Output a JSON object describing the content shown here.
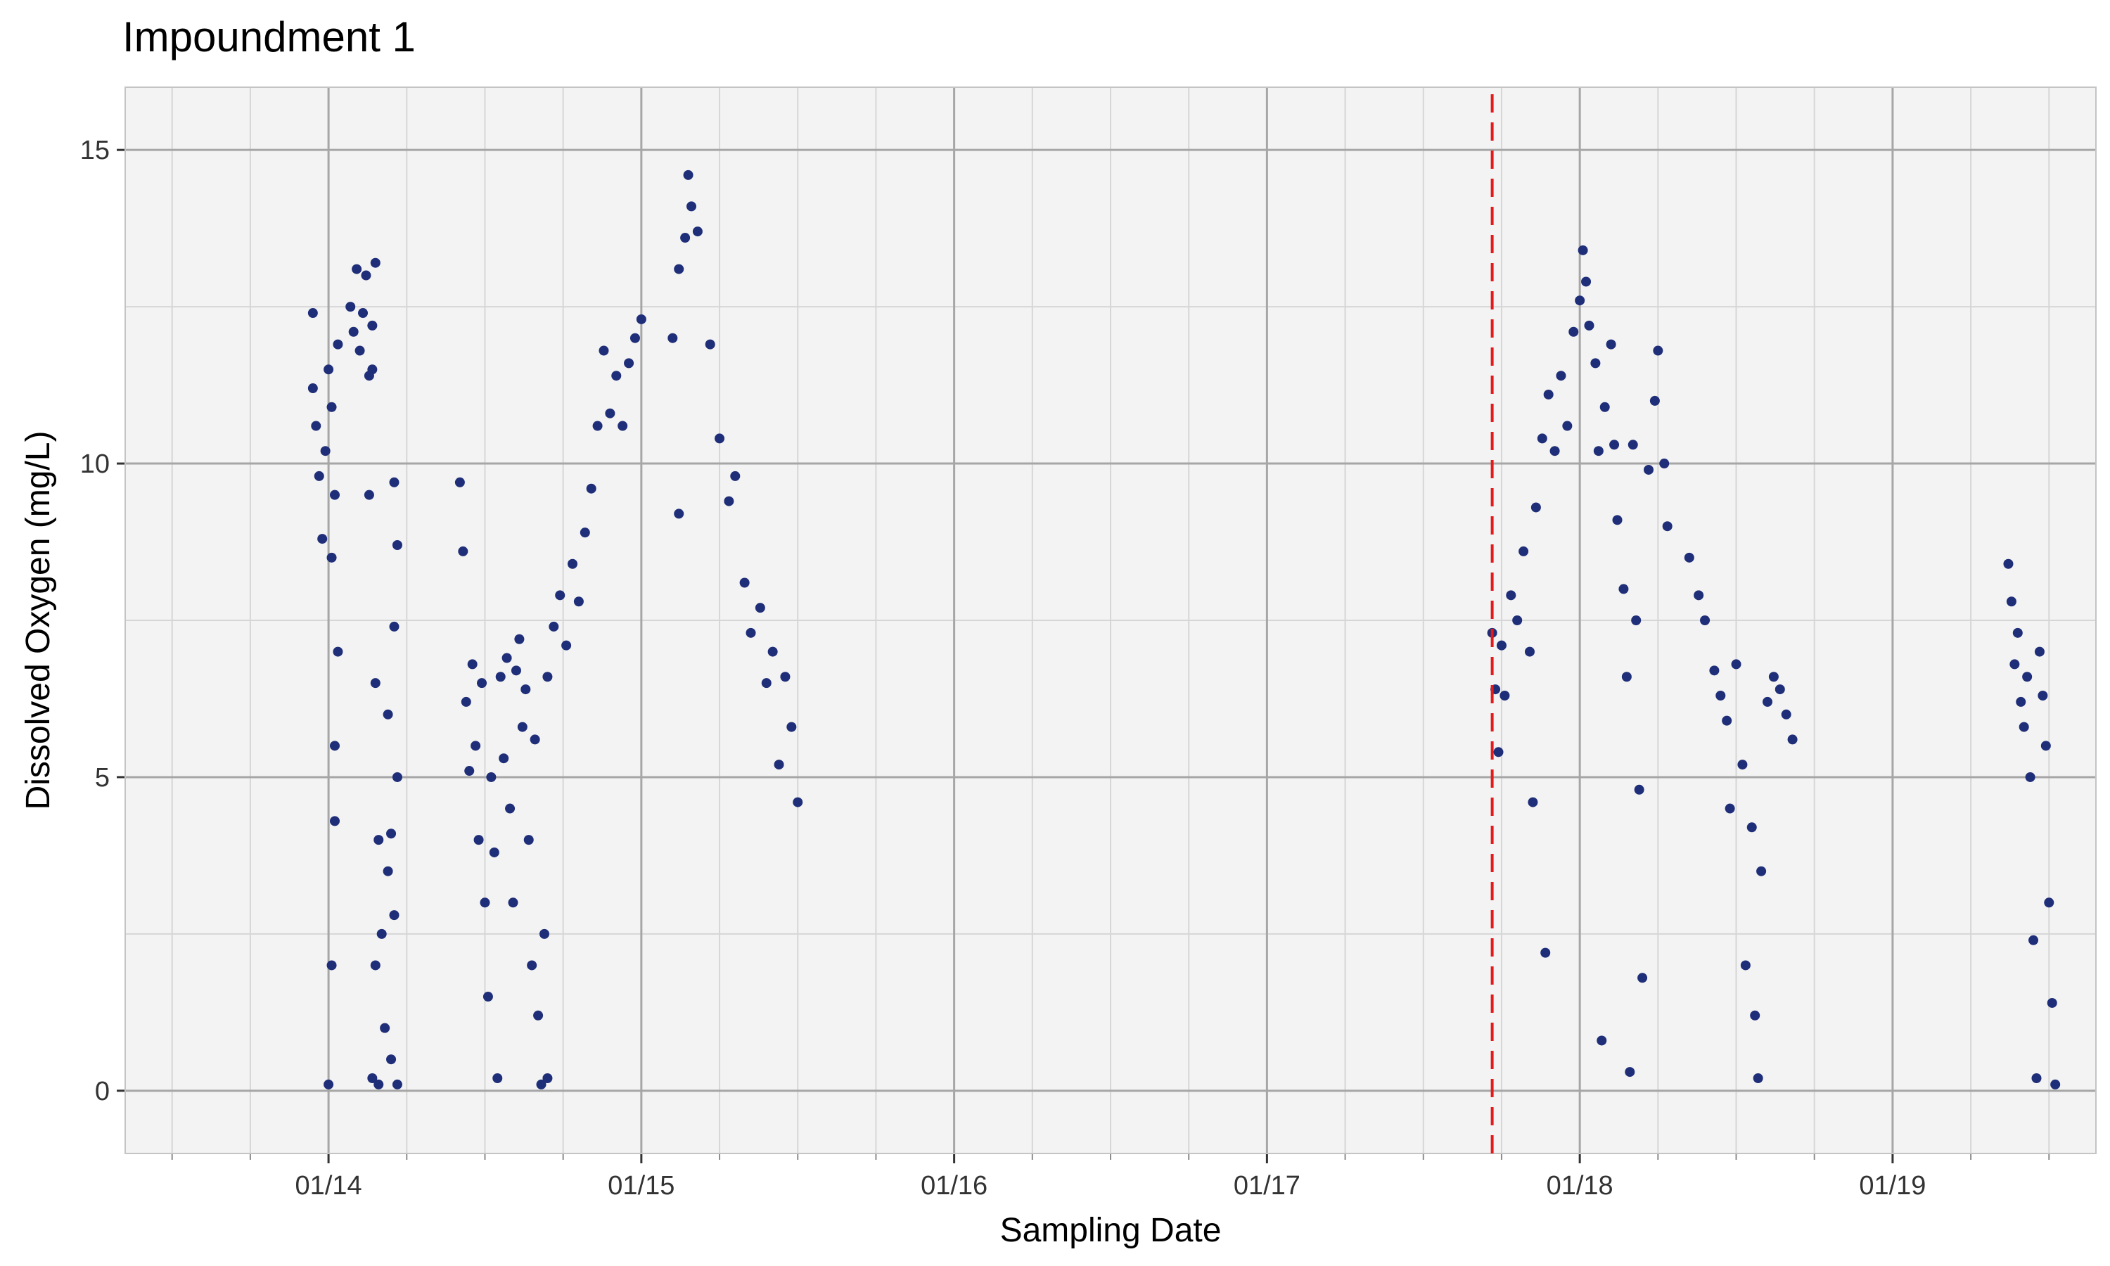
{
  "chart_data": {
    "type": "scatter",
    "title": "Impoundment 1",
    "xlabel": "Sampling Date",
    "ylabel": "Dissolved Oxygen (mg/L)",
    "x_unit": "days",
    "xlim": [
      -0.65,
      5.65
    ],
    "ylim": [
      -1.0,
      16.0
    ],
    "x_ticks": [
      {
        "label": "01/14",
        "value": 0
      },
      {
        "label": "01/15",
        "value": 1
      },
      {
        "label": "01/16",
        "value": 2
      },
      {
        "label": "01/17",
        "value": 3
      },
      {
        "label": "01/18",
        "value": 4
      },
      {
        "label": "01/19",
        "value": 5
      }
    ],
    "y_ticks": [
      0,
      5,
      10,
      15
    ],
    "grid": true,
    "reference_line": {
      "x": 3.72,
      "style": "dashed",
      "color": "#e31a1c"
    },
    "colors": {
      "points": "#1f2e78",
      "panel": "#f3f3f3",
      "grid_major": "#a6a6a6",
      "grid_minor": "#d6d6d6"
    },
    "series": [
      {
        "values": [
          [
            -0.05,
            11.2
          ],
          [
            -0.04,
            10.6
          ],
          [
            -0.03,
            9.8
          ],
          [
            -0.02,
            8.8
          ],
          [
            -0.01,
            10.2
          ],
          [
            0.0,
            11.5
          ],
          [
            0.01,
            10.9
          ],
          [
            0.02,
            9.5
          ],
          [
            0.0,
            0.1
          ],
          [
            0.01,
            2.0
          ],
          [
            0.02,
            5.5
          ],
          [
            0.03,
            7.0
          ],
          [
            -0.05,
            12.4
          ],
          [
            0.03,
            11.9
          ],
          [
            0.01,
            8.5
          ],
          [
            0.02,
            4.3
          ],
          [
            0.07,
            12.5
          ],
          [
            0.08,
            12.1
          ],
          [
            0.09,
            13.1
          ],
          [
            0.1,
            11.8
          ],
          [
            0.11,
            12.4
          ],
          [
            0.12,
            13.0
          ],
          [
            0.13,
            11.4
          ],
          [
            0.14,
            12.2
          ],
          [
            0.15,
            13.2
          ],
          [
            0.14,
            11.5
          ],
          [
            0.13,
            9.5
          ],
          [
            0.14,
            0.2
          ],
          [
            0.15,
            2.0
          ],
          [
            0.16,
            4.0
          ],
          [
            0.17,
            2.5
          ],
          [
            0.16,
            0.1
          ],
          [
            0.15,
            6.5
          ],
          [
            0.18,
            1.0
          ],
          [
            0.19,
            3.5
          ],
          [
            0.2,
            0.5
          ],
          [
            0.21,
            2.8
          ],
          [
            0.22,
            5.0
          ],
          [
            0.21,
            7.4
          ],
          [
            0.2,
            4.1
          ],
          [
            0.22,
            8.7
          ],
          [
            0.21,
            9.7
          ],
          [
            0.22,
            0.1
          ],
          [
            0.19,
            6.0
          ],
          [
            0.42,
            9.7
          ],
          [
            0.43,
            8.6
          ],
          [
            0.44,
            6.2
          ],
          [
            0.45,
            5.1
          ],
          [
            0.46,
            6.8
          ],
          [
            0.47,
            5.5
          ],
          [
            0.48,
            4.0
          ],
          [
            0.49,
            6.5
          ],
          [
            0.5,
            3.0
          ],
          [
            0.51,
            1.5
          ],
          [
            0.52,
            5.0
          ],
          [
            0.53,
            3.8
          ],
          [
            0.54,
            0.2
          ],
          [
            0.55,
            6.6
          ],
          [
            0.56,
            5.3
          ],
          [
            0.57,
            6.9
          ],
          [
            0.58,
            4.5
          ],
          [
            0.59,
            3.0
          ],
          [
            0.6,
            6.7
          ],
          [
            0.61,
            7.2
          ],
          [
            0.62,
            5.8
          ],
          [
            0.63,
            6.4
          ],
          [
            0.64,
            4.0
          ],
          [
            0.65,
            2.0
          ],
          [
            0.66,
            5.6
          ],
          [
            0.67,
            1.2
          ],
          [
            0.68,
            0.1
          ],
          [
            0.69,
            2.5
          ],
          [
            0.7,
            0.2
          ],
          [
            0.7,
            6.6
          ],
          [
            0.72,
            7.4
          ],
          [
            0.74,
            7.9
          ],
          [
            0.76,
            7.1
          ],
          [
            0.78,
            8.4
          ],
          [
            0.8,
            7.8
          ],
          [
            0.82,
            8.9
          ],
          [
            0.84,
            9.6
          ],
          [
            0.86,
            10.6
          ],
          [
            0.88,
            11.8
          ],
          [
            0.9,
            10.8
          ],
          [
            0.92,
            11.4
          ],
          [
            0.94,
            10.6
          ],
          [
            0.96,
            11.6
          ],
          [
            0.98,
            12.0
          ],
          [
            1.0,
            12.3
          ],
          [
            1.1,
            12.0
          ],
          [
            1.12,
            13.1
          ],
          [
            1.14,
            13.6
          ],
          [
            1.15,
            14.6
          ],
          [
            1.16,
            14.1
          ],
          [
            1.18,
            13.7
          ],
          [
            1.12,
            9.2
          ],
          [
            1.22,
            11.9
          ],
          [
            1.25,
            10.4
          ],
          [
            1.28,
            9.4
          ],
          [
            1.3,
            9.8
          ],
          [
            1.33,
            8.1
          ],
          [
            1.35,
            7.3
          ],
          [
            1.38,
            7.7
          ],
          [
            1.4,
            6.5
          ],
          [
            1.42,
            7.0
          ],
          [
            1.44,
            5.2
          ],
          [
            1.46,
            6.6
          ],
          [
            1.48,
            5.8
          ],
          [
            1.5,
            4.6
          ]
        ]
      },
      {
        "values": [
          [
            3.72,
            7.3
          ],
          [
            3.73,
            6.4
          ],
          [
            3.74,
            5.4
          ],
          [
            3.75,
            7.1
          ],
          [
            3.76,
            6.3
          ],
          [
            3.78,
            7.9
          ],
          [
            3.8,
            7.5
          ],
          [
            3.82,
            8.6
          ],
          [
            3.84,
            7.0
          ],
          [
            3.85,
            4.6
          ],
          [
            3.86,
            9.3
          ],
          [
            3.88,
            10.4
          ],
          [
            3.89,
            2.2
          ],
          [
            3.9,
            11.1
          ],
          [
            3.92,
            10.2
          ],
          [
            3.94,
            11.4
          ],
          [
            3.96,
            10.6
          ],
          [
            3.98,
            12.1
          ],
          [
            4.0,
            12.6
          ],
          [
            4.01,
            13.4
          ],
          [
            4.02,
            12.9
          ],
          [
            4.03,
            12.2
          ],
          [
            4.05,
            11.6
          ],
          [
            4.06,
            10.2
          ],
          [
            4.07,
            0.8
          ],
          [
            4.08,
            10.9
          ],
          [
            4.1,
            11.9
          ],
          [
            4.11,
            10.3
          ],
          [
            4.12,
            9.1
          ],
          [
            4.14,
            8.0
          ],
          [
            4.15,
            6.6
          ],
          [
            4.16,
            0.3
          ],
          [
            4.17,
            10.3
          ],
          [
            4.18,
            7.5
          ],
          [
            4.19,
            4.8
          ],
          [
            4.2,
            1.8
          ],
          [
            4.22,
            9.9
          ],
          [
            4.24,
            11.0
          ],
          [
            4.25,
            11.8
          ],
          [
            4.27,
            10.0
          ],
          [
            4.28,
            9.0
          ],
          [
            4.35,
            8.5
          ],
          [
            4.38,
            7.9
          ],
          [
            4.4,
            7.5
          ],
          [
            4.43,
            6.7
          ],
          [
            4.45,
            6.3
          ],
          [
            4.47,
            5.9
          ],
          [
            4.48,
            4.5
          ],
          [
            4.5,
            6.8
          ],
          [
            4.52,
            5.2
          ],
          [
            4.53,
            2.0
          ],
          [
            4.55,
            4.2
          ],
          [
            4.56,
            1.2
          ],
          [
            4.57,
            0.2
          ],
          [
            4.58,
            3.5
          ],
          [
            4.6,
            6.2
          ],
          [
            4.62,
            6.6
          ],
          [
            4.64,
            6.4
          ],
          [
            4.66,
            6.0
          ],
          [
            4.68,
            5.6
          ],
          [
            5.37,
            8.4
          ],
          [
            5.38,
            7.8
          ],
          [
            5.39,
            6.8
          ],
          [
            5.4,
            7.3
          ],
          [
            5.41,
            6.2
          ],
          [
            5.42,
            5.8
          ],
          [
            5.43,
            6.6
          ],
          [
            5.44,
            5.0
          ],
          [
            5.45,
            2.4
          ],
          [
            5.46,
            0.2
          ],
          [
            5.47,
            7.0
          ],
          [
            5.48,
            6.3
          ],
          [
            5.49,
            5.5
          ],
          [
            5.5,
            3.0
          ],
          [
            5.51,
            1.4
          ],
          [
            5.52,
            0.1
          ]
        ]
      }
    ]
  }
}
